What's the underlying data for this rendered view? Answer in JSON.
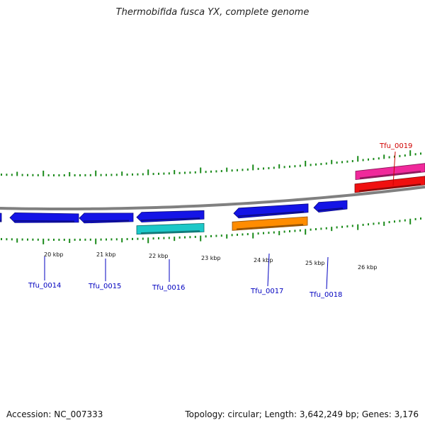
{
  "title": "Thermobifida fusca YX, complete genome",
  "footer": {
    "accession": "Accession: NC_007333",
    "summary": "Topology: circular; Length: 3,642,249 bp; Genes: 3,176"
  },
  "colors": {
    "tick": "#1a8a1a",
    "backbone": "#808080",
    "gene_label": "#0000c0",
    "highlight_label": "#d00000",
    "blue": "#1414e6",
    "cyan": "#1cc8c8",
    "orange": "#ff8c00",
    "pink": "#f0289b",
    "red": "#f01010"
  },
  "scale": {
    "labels": [
      "20 kbp",
      "21 kbp",
      "22 kbp",
      "23 kbp",
      "24 kbp",
      "25 kbp",
      "26 kbp"
    ]
  },
  "genes": [
    {
      "label": "Tfu_0014",
      "color": "blue"
    },
    {
      "label": "Tfu_0015",
      "color": "blue"
    },
    {
      "label": "Tfu_0016",
      "color": "blue"
    },
    {
      "label": "Tfu_0017",
      "color": "blue"
    },
    {
      "label": "Tfu_0018",
      "color": "blue"
    },
    {
      "label": "Tfu_0019",
      "color": "pink"
    }
  ]
}
